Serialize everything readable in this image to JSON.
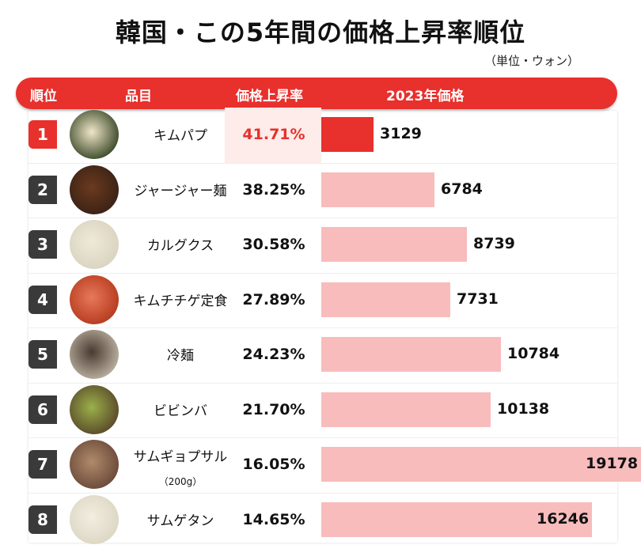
{
  "title": "韓国・この5年間の価格上昇率順位",
  "unit": "（単位・ウォン）",
  "header": {
    "rank": "順位",
    "item": "品目",
    "rate": "価格上昇率",
    "price": "2023年価格"
  },
  "colors": {
    "accent": "#e8302c",
    "bar": "#f8bcbc",
    "rank_dark": "#3a3a3a"
  },
  "chart_data": {
    "type": "bar",
    "title": "韓国・この5年間の価格上昇率順位",
    "categories": [
      "キムパプ",
      "ジャージャー麺",
      "カルグクス",
      "キムチチゲ定食",
      "冷麺",
      "ビビンバ",
      "サムギョプサル",
      "サムゲタン"
    ],
    "series": [
      {
        "name": "価格上昇率",
        "values": [
          41.71,
          38.25,
          30.58,
          27.89,
          24.23,
          21.7,
          16.05,
          14.65
        ]
      },
      {
        "name": "2023年価格",
        "values": [
          3129,
          6784,
          8739,
          7731,
          10784,
          10138,
          19178,
          16246
        ]
      }
    ],
    "xlim": [
      0,
      19178
    ]
  },
  "rows": [
    {
      "rank": "1",
      "name": "キムパプ",
      "sub": "",
      "rate": "41.71%",
      "price": "3129",
      "price_value": 3129,
      "food_icon": "kimbap-icon"
    },
    {
      "rank": "2",
      "name": "ジャージャー麺",
      "sub": "",
      "rate": "38.25%",
      "price": "6784",
      "price_value": 6784,
      "food_icon": "jajangmyeon-icon"
    },
    {
      "rank": "3",
      "name": "カルグクス",
      "sub": "",
      "rate": "30.58%",
      "price": "8739",
      "price_value": 8739,
      "food_icon": "kalguksu-icon"
    },
    {
      "rank": "4",
      "name": "キムチチゲ定食",
      "sub": "",
      "rate": "27.89%",
      "price": "7731",
      "price_value": 7731,
      "food_icon": "kimchi-stew-icon"
    },
    {
      "rank": "5",
      "name": "冷麺",
      "sub": "",
      "rate": "24.23%",
      "price": "10784",
      "price_value": 10784,
      "food_icon": "naengmyeon-icon"
    },
    {
      "rank": "6",
      "name": "ビビンバ",
      "sub": "",
      "rate": "21.70%",
      "price": "10138",
      "price_value": 10138,
      "food_icon": "bibimbap-icon"
    },
    {
      "rank": "7",
      "name": "サムギョプサル",
      "sub": "（200g）",
      "rate": "16.05%",
      "price": "19178",
      "price_value": 19178,
      "food_icon": "samgyeopsal-icon"
    },
    {
      "rank": "8",
      "name": "サムゲタン",
      "sub": "",
      "rate": "14.65%",
      "price": "16246",
      "price_value": 16246,
      "food_icon": "samgyetang-icon"
    }
  ]
}
